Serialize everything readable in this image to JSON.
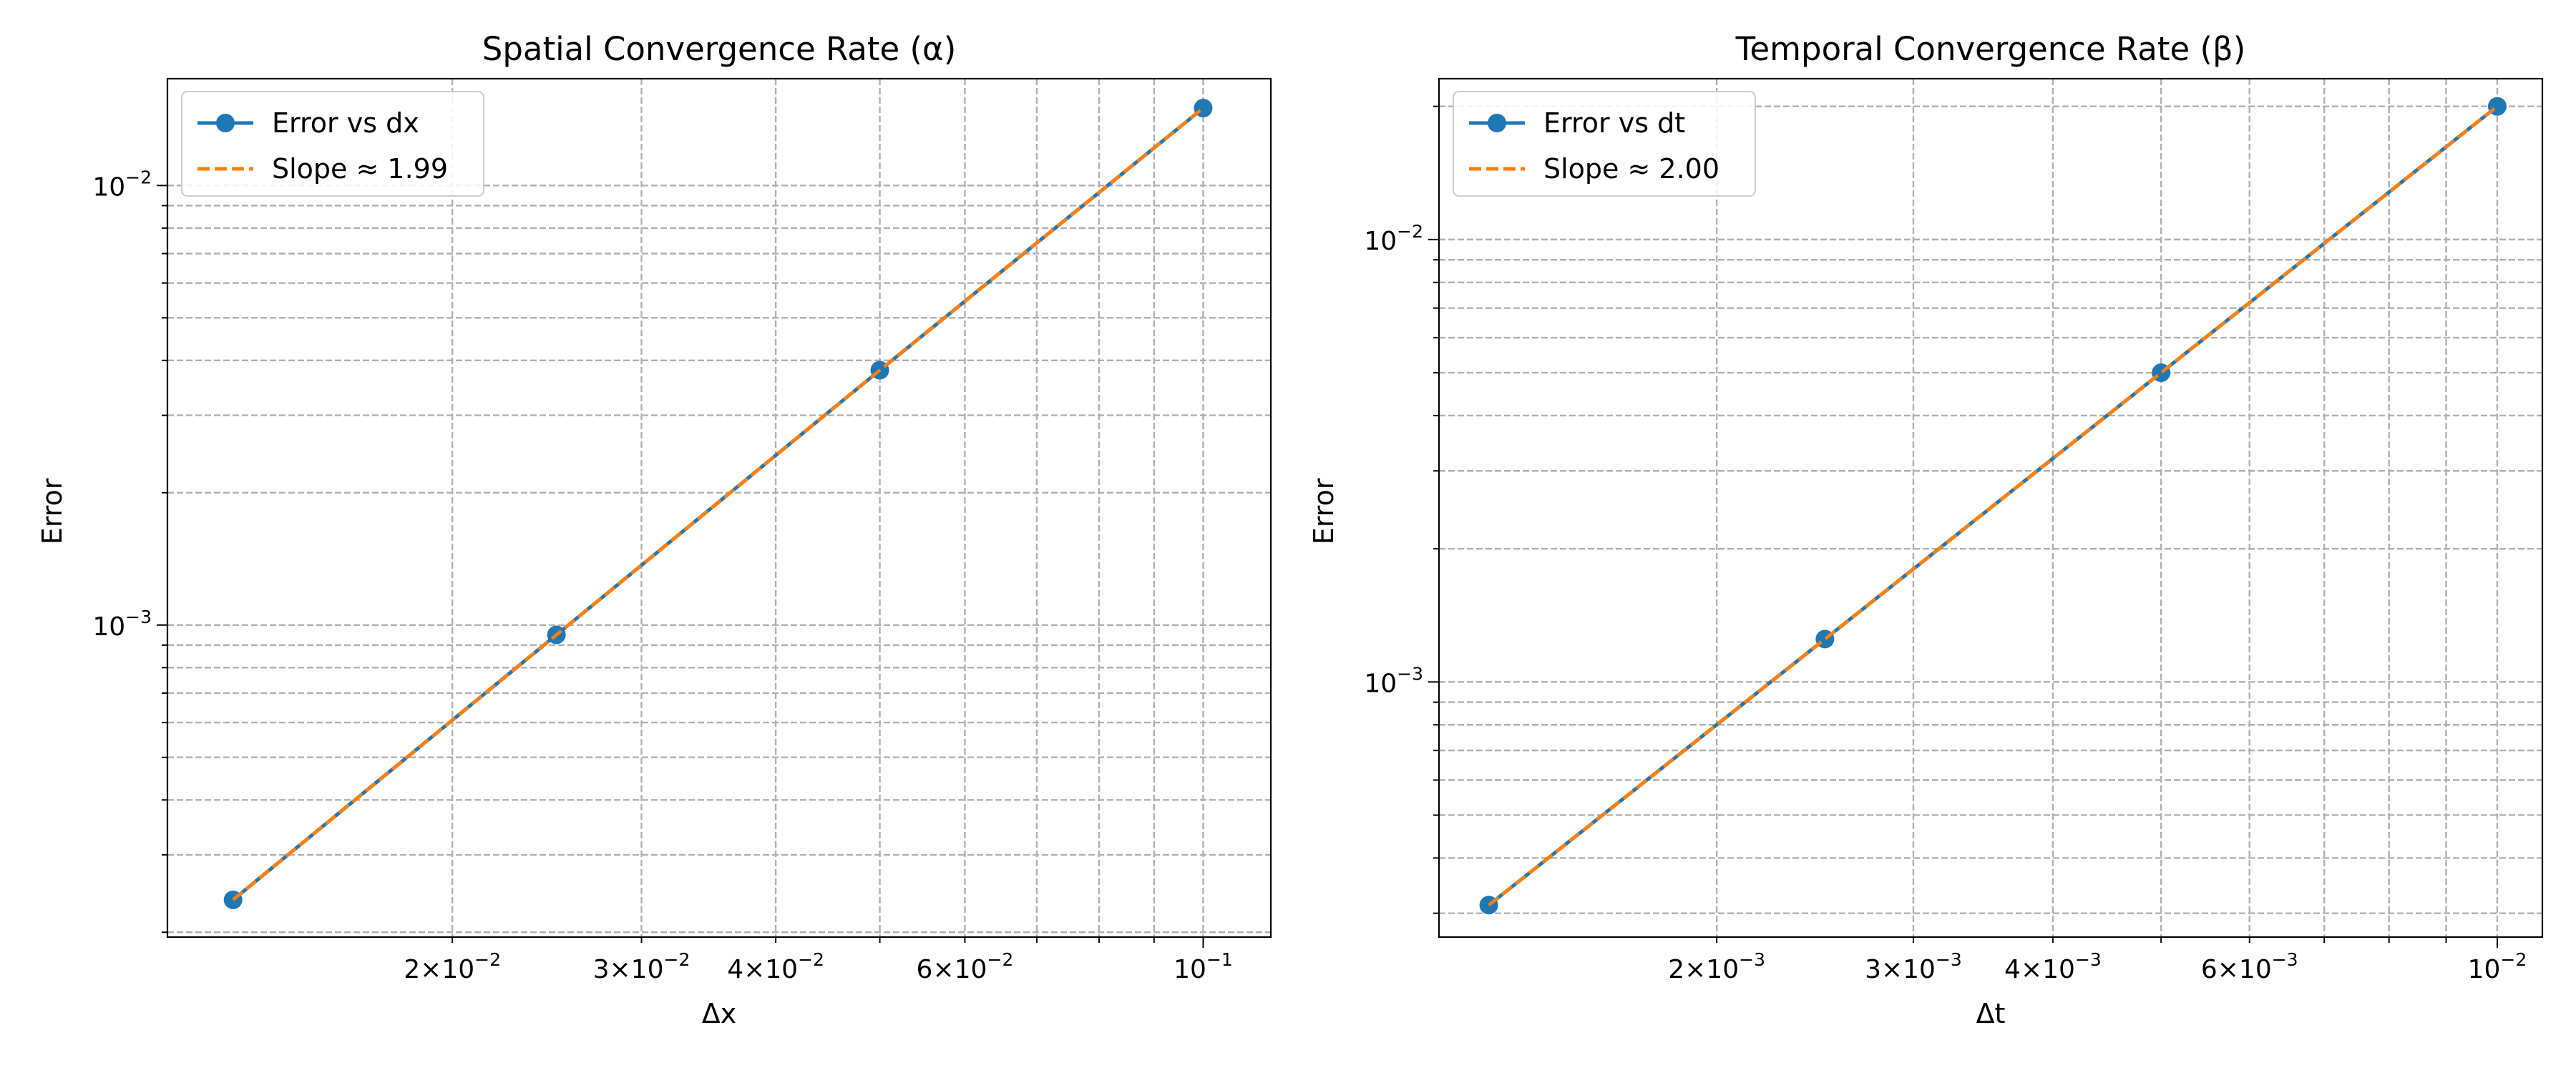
{
  "chart_data": [
    {
      "type": "line",
      "title": "Spatial Convergence Rate (α)",
      "xlabel": "Δx",
      "ylabel": "Error",
      "xscale": "log",
      "yscale": "log",
      "xlim": [
        0.01086,
        0.1156
      ],
      "ylim": [
        0.000195,
        0.0175
      ],
      "grid": "both",
      "legend_position": "top-left",
      "x_ticks": [
        {
          "value": 0.02,
          "mant": "2",
          "exp": "−2"
        },
        {
          "value": 0.03,
          "mant": "3",
          "exp": "−2"
        },
        {
          "value": 0.04,
          "mant": "4",
          "exp": "−2"
        },
        {
          "value": 0.06,
          "mant": "6",
          "exp": "−2"
        },
        {
          "value": 0.1,
          "mant": "",
          "exp": "−1"
        }
      ],
      "y_ticks": [
        {
          "value": 0.001,
          "mant": "",
          "exp": "−3"
        },
        {
          "value": 0.01,
          "mant": "",
          "exp": "−2"
        }
      ],
      "series": [
        {
          "name": "Error vs dx",
          "x": [
            0.0125,
            0.025,
            0.05,
            0.1
          ],
          "y": [
            0.000237,
            0.00095,
            0.0038,
            0.015
          ],
          "color": "#1f77b4",
          "style": "solid",
          "marker": "circle"
        },
        {
          "name": "Slope ≈ 1.99",
          "x": [
            0.0125,
            0.025,
            0.05,
            0.1
          ],
          "y": [
            0.000237,
            0.00095,
            0.0038,
            0.015
          ],
          "color": "#ff7f0e",
          "style": "dashed",
          "marker": "none"
        }
      ]
    },
    {
      "type": "line",
      "title": "Temporal Convergence Rate (β)",
      "xlabel": "Δt",
      "ylabel": "Error",
      "xscale": "log",
      "yscale": "log",
      "xlim": [
        0.001128,
        0.010975
      ],
      "ylim": [
        0.000265,
        0.0231
      ],
      "grid": "both",
      "legend_position": "top-left",
      "x_ticks": [
        {
          "value": 0.002,
          "mant": "2",
          "exp": "−3"
        },
        {
          "value": 0.003,
          "mant": "3",
          "exp": "−3"
        },
        {
          "value": 0.004,
          "mant": "4",
          "exp": "−3"
        },
        {
          "value": 0.006,
          "mant": "6",
          "exp": "−3"
        },
        {
          "value": 0.01,
          "mant": "",
          "exp": "−2"
        }
      ],
      "y_ticks": [
        {
          "value": 0.001,
          "mant": "",
          "exp": "−3"
        },
        {
          "value": 0.01,
          "mant": "",
          "exp": "−2"
        }
      ],
      "series": [
        {
          "name": "Error vs dt",
          "x": [
            0.00125,
            0.0025,
            0.005,
            0.01
          ],
          "y": [
            0.000313,
            0.00125,
            0.005,
            0.02
          ],
          "color": "#1f77b4",
          "style": "solid",
          "marker": "circle"
        },
        {
          "name": "Slope ≈ 2.00",
          "x": [
            0.00125,
            0.0025,
            0.005,
            0.01
          ],
          "y": [
            0.000313,
            0.00125,
            0.005,
            0.02
          ],
          "color": "#ff7f0e",
          "style": "dashed",
          "marker": "none"
        }
      ]
    }
  ]
}
